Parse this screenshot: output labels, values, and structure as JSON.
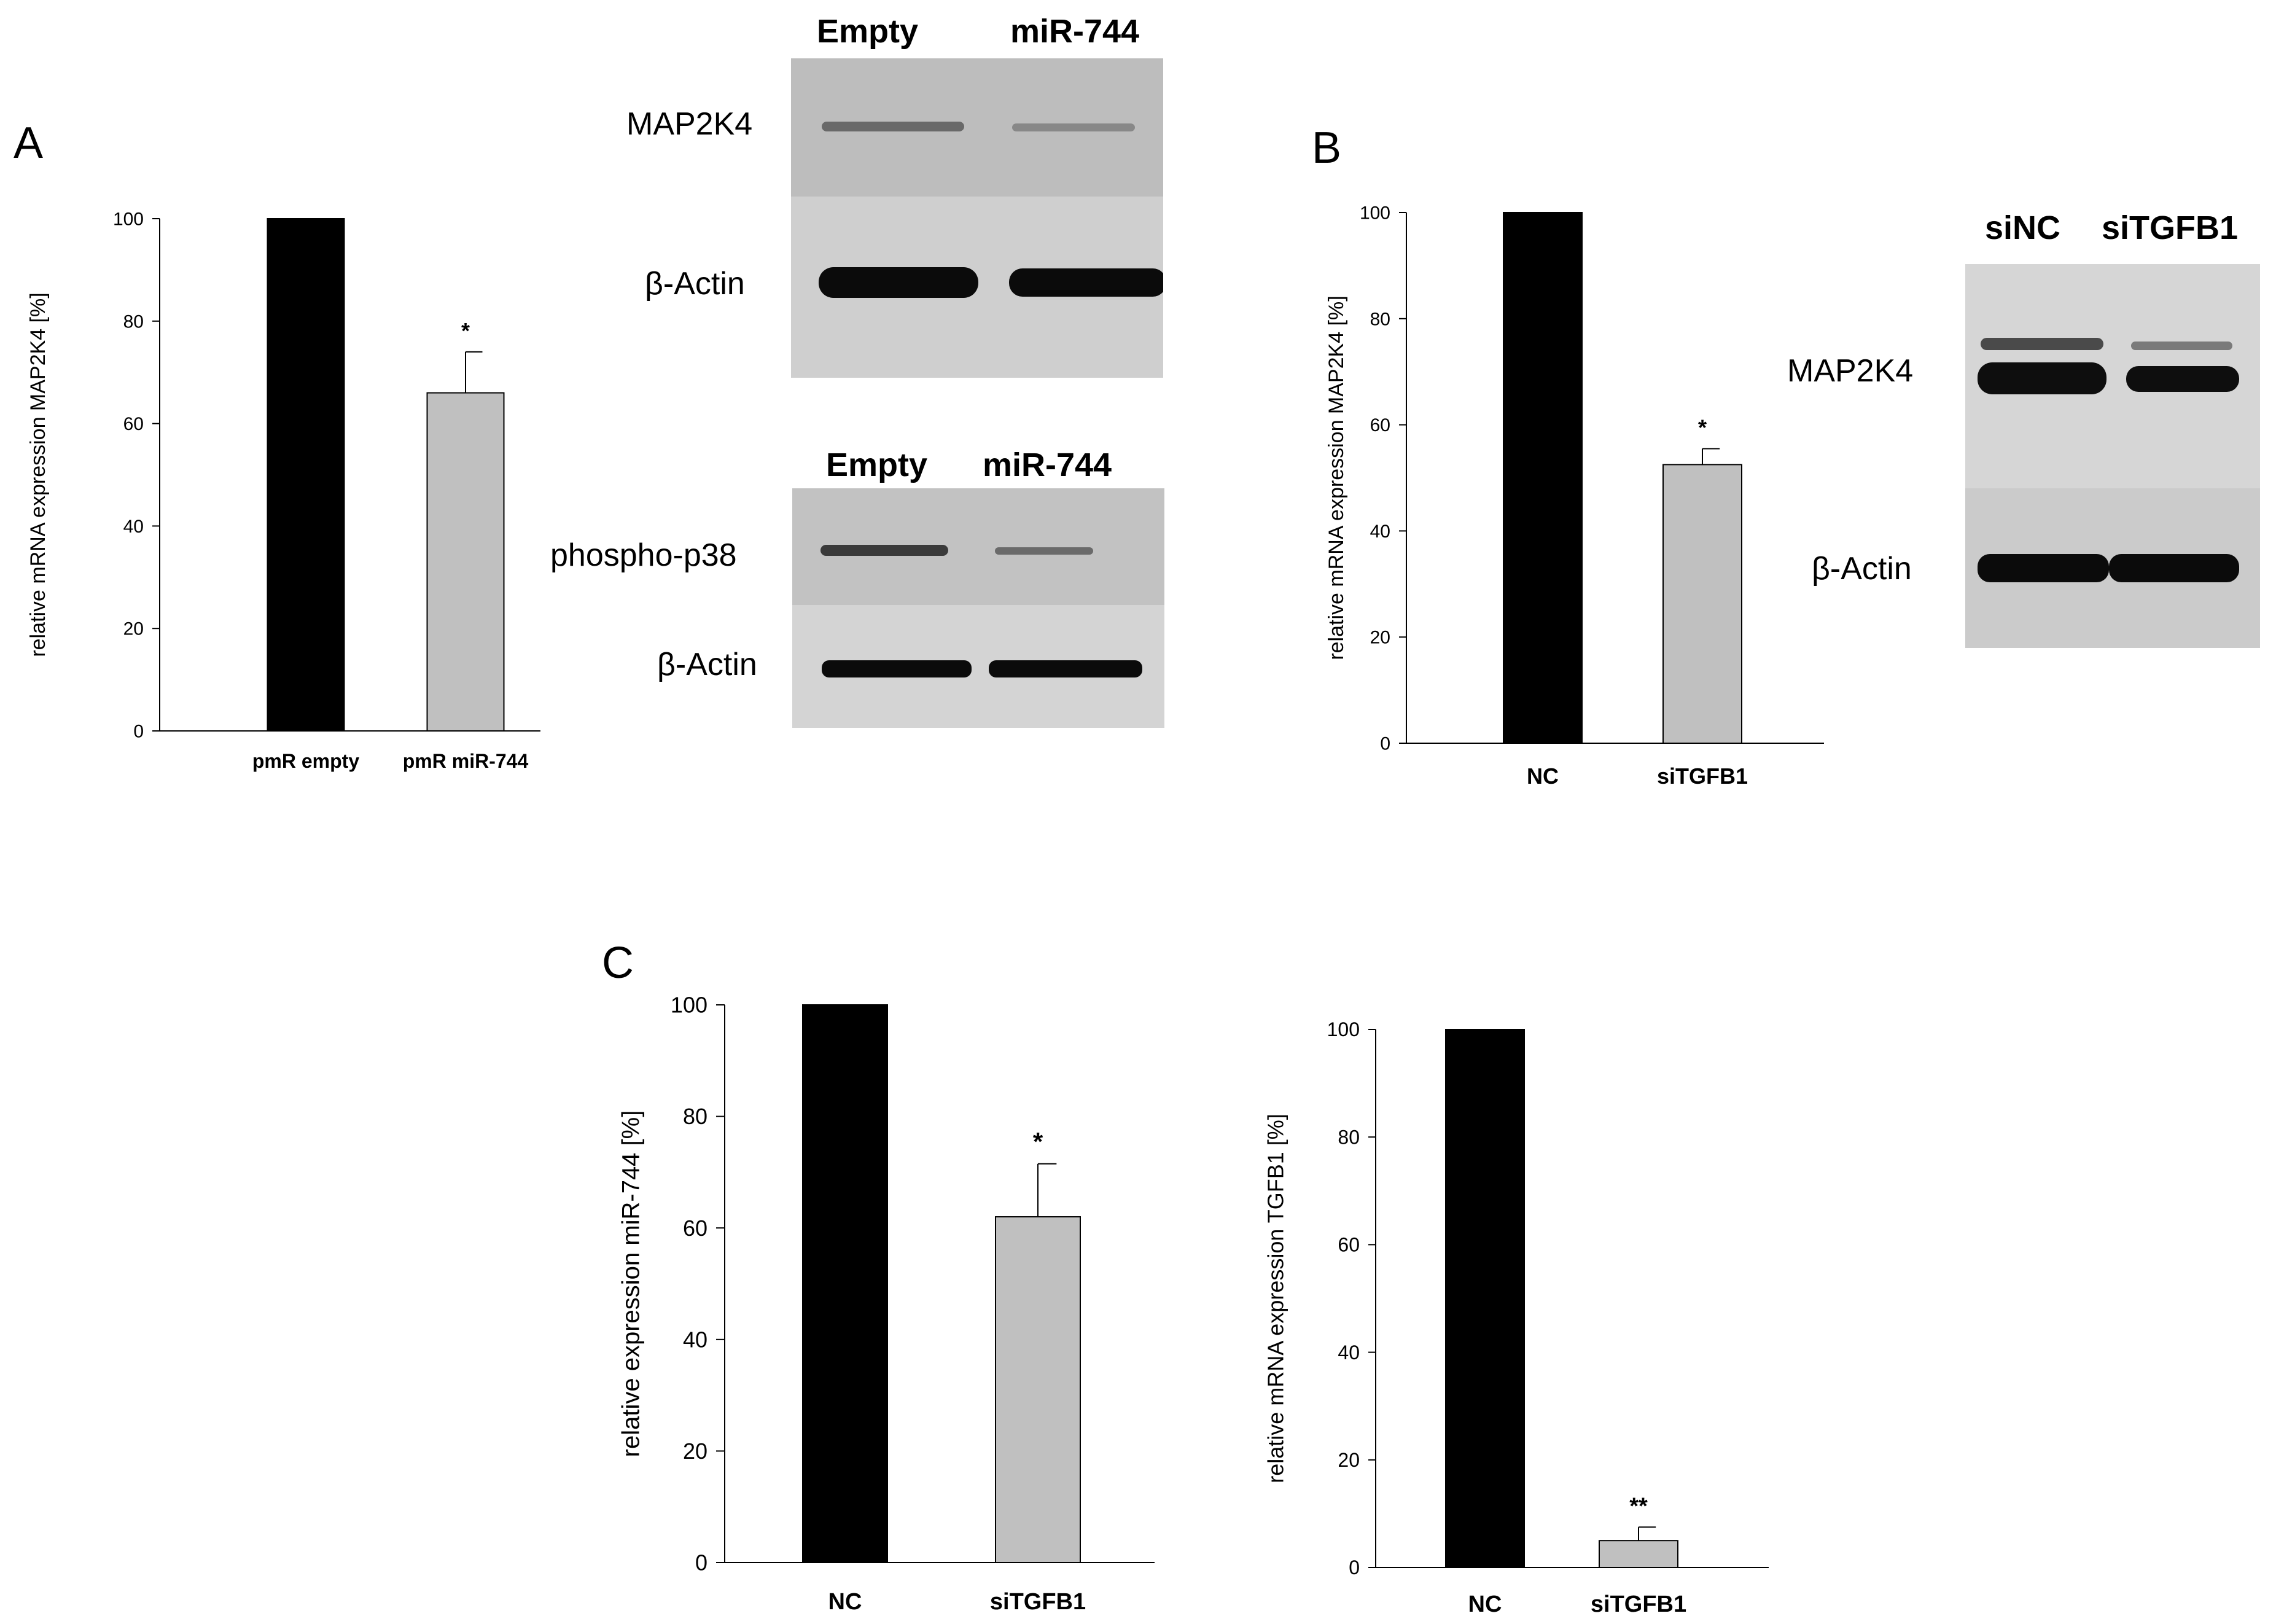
{
  "panels": {
    "A": "A",
    "B": "B",
    "C": "C"
  },
  "blot_A1": {
    "lanes": [
      "Empty",
      "miR-744"
    ],
    "rows": [
      "MAP2K4",
      "β-Actin"
    ]
  },
  "blot_A2": {
    "lanes": [
      "Empty",
      "miR-744"
    ],
    "rows": [
      "phospho-p38",
      "β-Actin"
    ]
  },
  "blot_B": {
    "lanes": [
      "siNC",
      "siTGFB1"
    ],
    "rows": [
      "MAP2K4",
      "β-Actin"
    ]
  },
  "colors": {
    "control_bar": "#000000",
    "treated_bar": "#c0c0c0"
  },
  "chart_data": [
    {
      "id": "chartA",
      "type": "bar",
      "categories": [
        "pmR empty",
        "pmR miR-744"
      ],
      "values": [
        100,
        66
      ],
      "errors": [
        0,
        8
      ],
      "annotations": [
        "",
        "*"
      ],
      "ylabel": "relative mRNA expression MAP2K4 [%]",
      "xlabel": "",
      "ylim": [
        0,
        100
      ],
      "yticks": [
        0,
        20,
        40,
        60,
        80,
        100
      ],
      "grid": false
    },
    {
      "id": "chartB",
      "type": "bar",
      "categories": [
        "NC",
        "siTGFB1"
      ],
      "values": [
        100,
        52.5
      ],
      "errors": [
        0,
        3
      ],
      "annotations": [
        "",
        "*"
      ],
      "ylabel": "relative mRNA expression MAP2K4 [%]",
      "xlabel": "",
      "ylim": [
        0,
        100
      ],
      "yticks": [
        0,
        20,
        40,
        60,
        80,
        100
      ],
      "grid": false
    },
    {
      "id": "chartC1",
      "type": "bar",
      "categories": [
        "NC",
        "siTGFB1"
      ],
      "values": [
        100,
        62
      ],
      "errors": [
        0,
        9.5
      ],
      "annotations": [
        "",
        "*"
      ],
      "ylabel": "relative expression miR-744 [%]",
      "xlabel": "",
      "ylim": [
        0,
        100
      ],
      "yticks": [
        0,
        20,
        40,
        60,
        80,
        100
      ],
      "grid": false
    },
    {
      "id": "chartC2",
      "type": "bar",
      "categories": [
        "NC",
        "siTGFB1"
      ],
      "values": [
        100,
        5
      ],
      "errors": [
        0,
        2.5
      ],
      "annotations": [
        "",
        "**"
      ],
      "ylabel": "relative mRNA expression TGFB1 [%]",
      "xlabel": "",
      "ylim": [
        0,
        100
      ],
      "yticks": [
        0,
        20,
        40,
        60,
        80,
        100
      ],
      "grid": false
    }
  ]
}
